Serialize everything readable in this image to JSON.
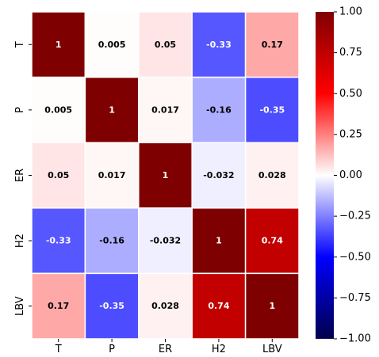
{
  "chart_data": {
    "type": "heatmap",
    "title": "",
    "xlabel": "",
    "ylabel": "",
    "x_categories": [
      "T",
      "P",
      "ER",
      "H2",
      "LBV"
    ],
    "y_categories": [
      "T",
      "P",
      "ER",
      "H2",
      "LBV"
    ],
    "values": [
      [
        1,
        0.005,
        0.05,
        -0.33,
        0.17
      ],
      [
        0.005,
        1,
        0.017,
        -0.16,
        -0.35
      ],
      [
        0.05,
        0.017,
        1,
        -0.032,
        0.028
      ],
      [
        -0.33,
        -0.16,
        -0.032,
        1,
        0.74
      ],
      [
        0.17,
        -0.35,
        0.028,
        0.74,
        1
      ]
    ],
    "cell_labels": [
      [
        "1",
        "0.005",
        "0.05",
        "-0.33",
        "0.17"
      ],
      [
        "0.005",
        "1",
        "0.017",
        "-0.16",
        "-0.35"
      ],
      [
        "0.05",
        "0.017",
        "1",
        "-0.032",
        "0.028"
      ],
      [
        "-0.33",
        "-0.16",
        "-0.032",
        "1",
        "0.74"
      ],
      [
        "0.17",
        "-0.35",
        "0.028",
        "0.74",
        "1"
      ]
    ],
    "colormap": "seismic",
    "colormap_stops": [
      "#00004c",
      "#0000ff",
      "#ffffff",
      "#ff0000",
      "#7f0000"
    ],
    "vmin": -1,
    "vmax": 1,
    "colorbar_ticks": [
      "1.00",
      "0.75",
      "0.50",
      "0.25",
      "0.00",
      "−0.25",
      "−0.50",
      "−0.75",
      "−1.00"
    ],
    "colorbar_tick_values": [
      1,
      0.75,
      0.5,
      0.25,
      0,
      -0.25,
      -0.5,
      -0.75,
      -1
    ],
    "cell_border_color": "#ffffff",
    "legend": "colorbar-right",
    "grid": false
  }
}
